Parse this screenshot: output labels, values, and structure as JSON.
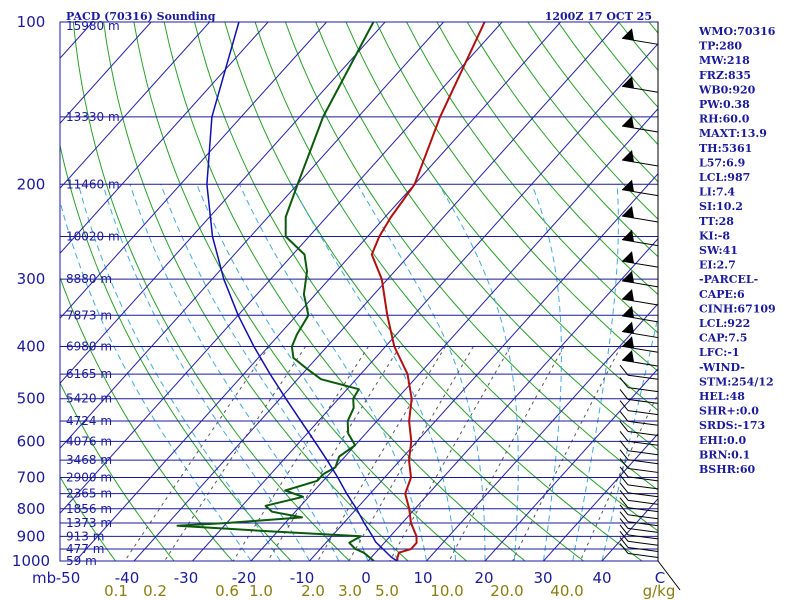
{
  "header": {
    "title": "PACD (70316) Sounding",
    "time": "1200Z 17 OCT 25"
  },
  "colors": {
    "frame": "#1a1a9c",
    "isobar": "#1a1a9c",
    "isotherm": "#2222aa",
    "dry_adiabat": "#2aa02a",
    "moist_adiabat": "#44aadd",
    "mixing_ratio": "#555555",
    "temperature": "#b01010",
    "dewpoint": "#0a5a0a",
    "parcel": "#1010b0",
    "wind": "#000000",
    "background": "#ffffff"
  },
  "pressure_labels": [
    "100",
    "200",
    "300",
    "400",
    "500",
    "600",
    "700",
    "800",
    "900",
    "1000"
  ],
  "mb_label": "mb",
  "height_labels": [
    {
      "p": 100,
      "text": "15980 m"
    },
    {
      "p": 150,
      "text": "13330 m"
    },
    {
      "p": 200,
      "text": "11460 m"
    },
    {
      "p": 250,
      "text": "10020 m"
    },
    {
      "p": 300,
      "text": "8880 m"
    },
    {
      "p": 350,
      "text": "7873 m"
    },
    {
      "p": 400,
      "text": "6980 m"
    },
    {
      "p": 450,
      "text": "6165 m"
    },
    {
      "p": 500,
      "text": "5420 m"
    },
    {
      "p": 550,
      "text": "4724 m"
    },
    {
      "p": 600,
      "text": "4076 m"
    },
    {
      "p": 650,
      "text": "3468 m"
    },
    {
      "p": 700,
      "text": "2900 m"
    },
    {
      "p": 750,
      "text": "2365 m"
    },
    {
      "p": 800,
      "text": "1856 m"
    },
    {
      "p": 850,
      "text": "1373 m"
    },
    {
      "p": 900,
      "text": "913 m"
    },
    {
      "p": 950,
      "text": "477 m"
    },
    {
      "p": 1000,
      "text": "59 m"
    }
  ],
  "temperature_labels": [
    "-50",
    "-40",
    "-30",
    "-20",
    "-10",
    "0",
    "10",
    "20",
    "30",
    "40",
    "C"
  ],
  "mixing_ratio_labels": [
    "0.1",
    "0.2",
    "0.6",
    "1.0",
    "2.0",
    "3.0",
    "5.0",
    "10.0",
    "20.0",
    "40.0",
    "g/kg"
  ],
  "indices": [
    "WMO:70316",
    "TP:280",
    "MW:218",
    "FRZ:835",
    "WB0:920",
    "PW:0.38",
    "RH:60.0",
    "MAXT:13.9",
    "TH:5361",
    "L57:6.9",
    "LCL:987",
    "LI:7.4",
    "SI:10.2",
    "TT:28",
    "KI:-8",
    "SW:41",
    "EI:2.7",
    "-PARCEL-",
    "CAPE:6",
    "CINH:67109",
    "LCL:922",
    "CAP:7.5",
    "LFC:-1",
    "-WIND-",
    "STM:254/12",
    "HEL:48",
    "SHR+:0.0",
    "SRDS:-173",
    "EHI:0.0",
    "BRN:0.1",
    "BSHR:60"
  ],
  "chart_data": {
    "type": "line",
    "subtype": "skew-T log-P sounding",
    "title": "PACD (70316) Sounding",
    "subtitle": "1200Z 17 OCT 25",
    "xlabel": "C",
    "ylabel": "mb",
    "pressure_range_mb": [
      100,
      1000
    ],
    "temperature_range_c": [
      -50,
      50
    ],
    "log_pressure": true,
    "series": [
      {
        "name": "",
        "kind": "temperature",
        "points": [
          [
            1000,
            5.0
          ],
          [
            985,
            4.5
          ],
          [
            965,
            4.0
          ],
          [
            950,
            5.5
          ],
          [
            925,
            5.5
          ],
          [
            900,
            4.5
          ],
          [
            850,
            1.5
          ],
          [
            800,
            -1.0
          ],
          [
            750,
            -4.0
          ],
          [
            700,
            -5.5
          ],
          [
            650,
            -8.5
          ],
          [
            600,
            -11.0
          ],
          [
            550,
            -14.5
          ],
          [
            500,
            -17.5
          ],
          [
            450,
            -22.0
          ],
          [
            400,
            -28.5
          ],
          [
            350,
            -34.5
          ],
          [
            300,
            -41.0
          ],
          [
            270,
            -46.5
          ],
          [
            250,
            -48.0
          ],
          [
            230,
            -49.0
          ],
          [
            200,
            -50.0
          ],
          [
            150,
            -56.0
          ],
          [
            100,
            -63.0
          ]
        ]
      },
      {
        "name": "",
        "kind": "dewpoint",
        "points": [
          [
            1000,
            1.0
          ],
          [
            965,
            -2.0
          ],
          [
            950,
            -4.0
          ],
          [
            925,
            -6.0
          ],
          [
            900,
            -5.0
          ],
          [
            880,
            -22.0
          ],
          [
            860,
            -38.0
          ],
          [
            850,
            -30.0
          ],
          [
            830,
            -18.0
          ],
          [
            810,
            -24.0
          ],
          [
            790,
            -26.0
          ],
          [
            760,
            -21.0
          ],
          [
            740,
            -25.0
          ],
          [
            710,
            -21.0
          ],
          [
            690,
            -21.0
          ],
          [
            670,
            -20.0
          ],
          [
            640,
            -21.0
          ],
          [
            610,
            -20.0
          ],
          [
            580,
            -23.0
          ],
          [
            550,
            -25.0
          ],
          [
            520,
            -26.0
          ],
          [
            500,
            -27.5
          ],
          [
            480,
            -28.0
          ],
          [
            460,
            -36.0
          ],
          [
            440,
            -40.0
          ],
          [
            420,
            -44.0
          ],
          [
            400,
            -46.0
          ],
          [
            380,
            -47.0
          ],
          [
            350,
            -48.0
          ],
          [
            320,
            -52.0
          ],
          [
            290,
            -55.0
          ],
          [
            270,
            -58.0
          ],
          [
            250,
            -64.0
          ],
          [
            230,
            -67.0
          ],
          [
            200,
            -70.0
          ],
          [
            150,
            -76.0
          ],
          [
            100,
            -82.0
          ]
        ]
      },
      {
        "name": "",
        "kind": "parcel",
        "points": [
          [
            1000,
            5.0
          ],
          [
            985,
            3.5
          ],
          [
            922,
            -1.6
          ],
          [
            900,
            -3.0
          ],
          [
            850,
            -6.5
          ],
          [
            800,
            -10.0
          ],
          [
            750,
            -14.0
          ],
          [
            700,
            -18.0
          ],
          [
            650,
            -22.5
          ],
          [
            600,
            -27.5
          ],
          [
            550,
            -33.0
          ],
          [
            500,
            -39.0
          ],
          [
            450,
            -45.5
          ],
          [
            400,
            -52.5
          ],
          [
            350,
            -60.0
          ],
          [
            300,
            -68.0
          ],
          [
            250,
            -76.5
          ],
          [
            200,
            -85.5
          ],
          [
            150,
            -95.0
          ],
          [
            100,
            -105.0
          ]
        ]
      }
    ],
    "mixing_ratio_gkg": [
      0.1,
      0.2,
      0.6,
      1.0,
      2.0,
      3.0,
      5.0,
      10.0,
      20.0,
      40.0
    ],
    "grid": true
  }
}
